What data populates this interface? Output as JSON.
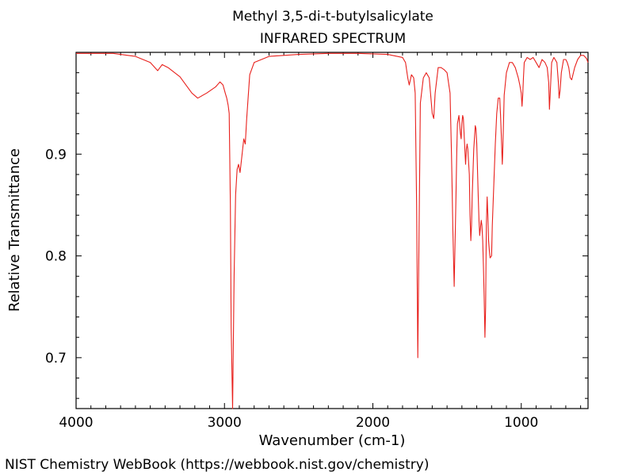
{
  "chart_data": {
    "type": "line",
    "title": "Methyl 3,5-di-t-butylsalicylate",
    "subtitle": "INFRARED SPECTRUM",
    "xlabel": "Wavenumber (cm-1)",
    "ylabel": "Relative Transmittance",
    "xlim": [
      4000,
      550
    ],
    "ylim": [
      0.65,
      1.0
    ],
    "x_ticks": [
      4000,
      3000,
      2000,
      1000
    ],
    "y_ticks": [
      0.7,
      0.8,
      0.9
    ],
    "x_tick_labels": [
      "4000",
      "3000",
      "2000",
      "1000"
    ],
    "y_tick_labels": [
      "0.7",
      "0.8",
      "0.9"
    ],
    "grid": false,
    "line_color": "#e8201c",
    "series": [
      {
        "x": [
          4000,
          3750,
          3600,
          3500,
          3450,
          3420,
          3380,
          3300,
          3220,
          3180,
          3120,
          3060,
          3030,
          3010,
          2995,
          2985,
          2975,
          2968,
          2960,
          2955,
          2945,
          2935,
          2925,
          2915,
          2905,
          2895,
          2885,
          2870,
          2860,
          2850,
          2830,
          2800,
          2700,
          2500,
          2300,
          2100,
          1900,
          1800,
          1780,
          1765,
          1755,
          1740,
          1725,
          1715,
          1705,
          1697,
          1690,
          1680,
          1660,
          1640,
          1620,
          1600,
          1590,
          1580,
          1560,
          1540,
          1520,
          1500,
          1480,
          1470,
          1460,
          1452,
          1445,
          1440,
          1435,
          1430,
          1420,
          1410,
          1405,
          1400,
          1395,
          1390,
          1385,
          1375,
          1370,
          1365,
          1360,
          1350,
          1345,
          1340,
          1335,
          1330,
          1320,
          1310,
          1305,
          1300,
          1295,
          1290,
          1285,
          1280,
          1270,
          1265,
          1260,
          1255,
          1250,
          1245,
          1240,
          1238,
          1235,
          1230,
          1225,
          1220,
          1215,
          1210,
          1200,
          1195,
          1185,
          1175,
          1165,
          1155,
          1145,
          1140,
          1135,
          1128,
          1125,
          1120,
          1115,
          1100,
          1080,
          1060,
          1040,
          1020,
          1010,
          1000,
          995,
          990,
          985,
          980,
          960,
          940,
          920,
          900,
          880,
          860,
          840,
          825,
          815,
          810,
          805,
          795,
          780,
          760,
          750,
          745,
          738,
          730,
          715,
          700,
          690,
          680,
          670,
          660,
          640,
          620,
          600,
          580,
          560,
          550
        ],
        "y": [
          0.999,
          0.999,
          0.996,
          0.99,
          0.982,
          0.988,
          0.985,
          0.976,
          0.96,
          0.955,
          0.96,
          0.966,
          0.971,
          0.968,
          0.96,
          0.955,
          0.948,
          0.94,
          0.85,
          0.73,
          0.65,
          0.78,
          0.86,
          0.885,
          0.89,
          0.882,
          0.895,
          0.915,
          0.91,
          0.935,
          0.978,
          0.99,
          0.996,
          0.998,
          0.999,
          0.999,
          0.998,
          0.995,
          0.99,
          0.975,
          0.968,
          0.978,
          0.975,
          0.96,
          0.85,
          0.7,
          0.8,
          0.95,
          0.975,
          0.98,
          0.975,
          0.94,
          0.935,
          0.96,
          0.985,
          0.985,
          0.983,
          0.98,
          0.96,
          0.9,
          0.82,
          0.77,
          0.82,
          0.86,
          0.9,
          0.93,
          0.938,
          0.92,
          0.915,
          0.93,
          0.938,
          0.935,
          0.92,
          0.89,
          0.905,
          0.91,
          0.905,
          0.88,
          0.84,
          0.815,
          0.83,
          0.86,
          0.905,
          0.928,
          0.925,
          0.91,
          0.885,
          0.86,
          0.835,
          0.82,
          0.835,
          0.83,
          0.815,
          0.79,
          0.76,
          0.72,
          0.75,
          0.79,
          0.83,
          0.858,
          0.84,
          0.815,
          0.805,
          0.798,
          0.8,
          0.83,
          0.87,
          0.91,
          0.94,
          0.955,
          0.955,
          0.94,
          0.92,
          0.89,
          0.9,
          0.93,
          0.958,
          0.98,
          0.99,
          0.99,
          0.985,
          0.975,
          0.968,
          0.96,
          0.947,
          0.958,
          0.975,
          0.99,
          0.995,
          0.993,
          0.995,
          0.99,
          0.985,
          0.993,
          0.99,
          0.985,
          0.97,
          0.944,
          0.96,
          0.99,
          0.995,
          0.99,
          0.97,
          0.955,
          0.963,
          0.98,
          0.993,
          0.993,
          0.99,
          0.985,
          0.975,
          0.973,
          0.985,
          0.993,
          0.997,
          0.997,
          0.994,
          0.99
        ]
      }
    ]
  },
  "footer": {
    "text": "NIST Chemistry WebBook (https://webbook.nist.gov/chemistry)"
  }
}
